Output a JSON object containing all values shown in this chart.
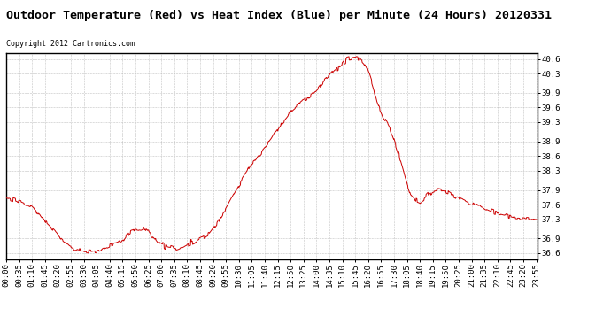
{
  "title": "Outdoor Temperature (Red) vs Heat Index (Blue) per Minute (24 Hours) 20120331",
  "copyright": "Copyright 2012 Cartronics.com",
  "yticks": [
    36.6,
    36.9,
    37.3,
    37.6,
    37.9,
    38.3,
    38.6,
    38.9,
    39.3,
    39.6,
    39.9,
    40.3,
    40.6
  ],
  "ylim": [
    36.48,
    40.72
  ],
  "line_color_red": "#cc0000",
  "bg_color": "#ffffff",
  "grid_color": "#bbbbbb",
  "title_fontsize": 9.5,
  "copyright_fontsize": 6.0,
  "tick_fontsize": 6.5,
  "xtick_step": 35
}
